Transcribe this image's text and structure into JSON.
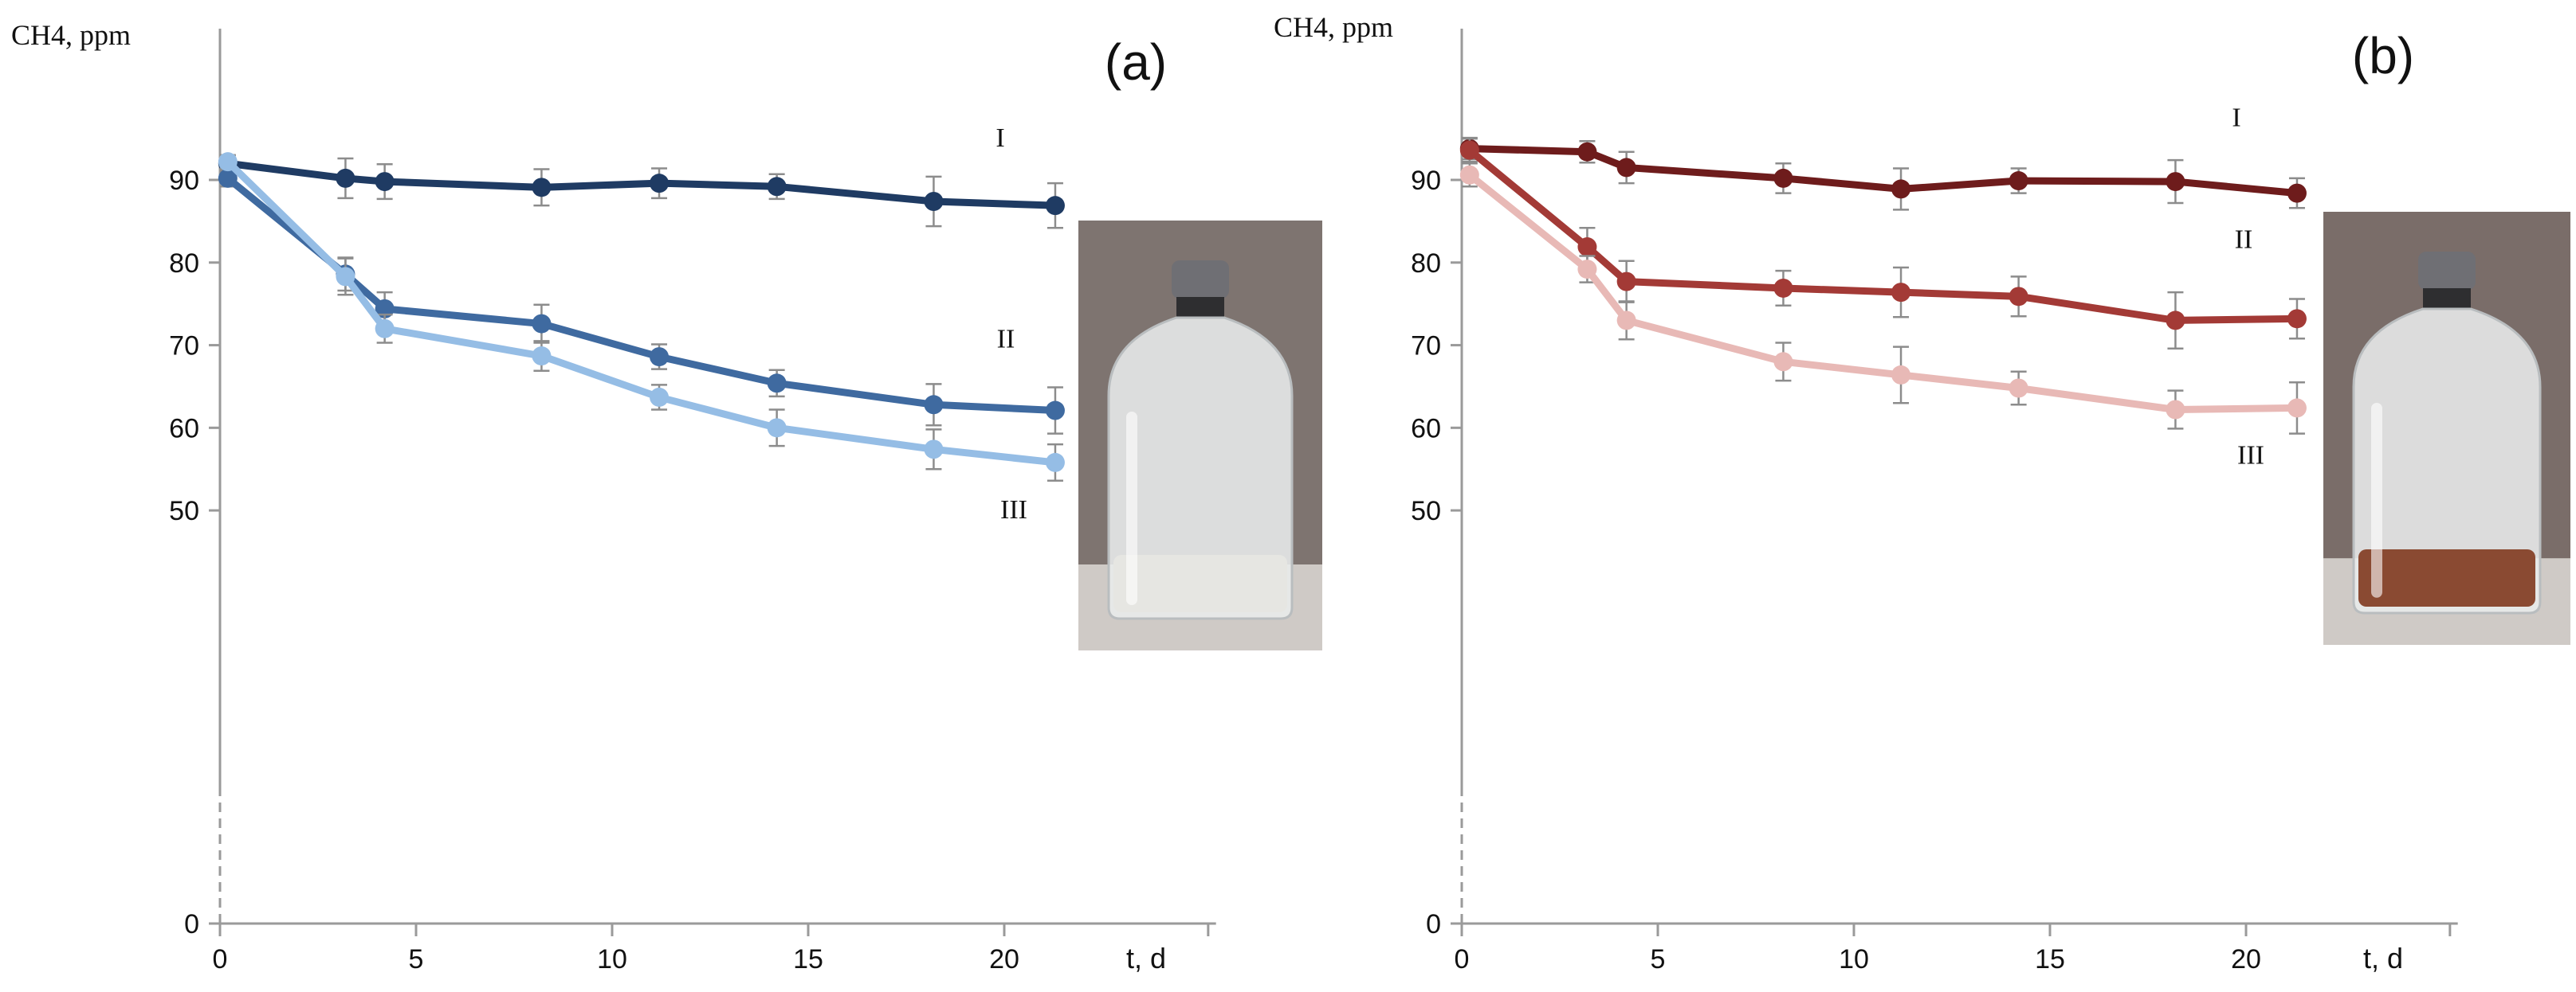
{
  "chart_data": [
    {
      "type": "line",
      "panel_label": "(a)",
      "ylabel": "CH4, ppm",
      "xlabel": "t, d",
      "xlim": [
        0,
        25
      ],
      "ylim": [
        0,
        100
      ],
      "x_ticks": [
        0,
        5,
        10,
        15,
        20
      ],
      "y_ticks": [
        0,
        50,
        60,
        70,
        80,
        90
      ],
      "grid": false,
      "series": [
        {
          "name": "I",
          "color": "#1f3b63",
          "x": [
            0.2,
            3.2,
            4.2,
            8.2,
            11.2,
            14.2,
            18.2,
            21.3
          ],
          "y": [
            92.0,
            90.2,
            89.8,
            89.1,
            89.6,
            89.2,
            87.4,
            86.9
          ],
          "err": [
            1.0,
            2.4,
            2.1,
            2.2,
            1.8,
            1.5,
            3.0,
            2.7
          ]
        },
        {
          "name": "II",
          "color": "#3f6aa0",
          "x": [
            0.2,
            3.2,
            4.2,
            8.2,
            11.2,
            14.2,
            18.2,
            21.3
          ],
          "y": [
            90.2,
            78.6,
            74.4,
            72.6,
            68.6,
            65.4,
            62.8,
            62.1
          ],
          "err": [
            1.0,
            2.0,
            2.0,
            2.3,
            1.5,
            1.6,
            2.5,
            2.8
          ]
        },
        {
          "name": "III",
          "color": "#95bde5",
          "x": [
            0.2,
            3.2,
            4.2,
            8.2,
            11.2,
            14.2,
            18.2,
            21.3
          ],
          "y": [
            92.2,
            78.3,
            72.0,
            68.7,
            63.7,
            60.0,
            57.4,
            55.8
          ],
          "err": [
            0.8,
            2.2,
            1.7,
            1.8,
            1.5,
            2.2,
            2.4,
            2.2
          ]
        }
      ]
    },
    {
      "type": "line",
      "panel_label": "(b)",
      "ylabel": "CH4, ppm",
      "xlabel": "t, d",
      "xlim": [
        0,
        25
      ],
      "ylim": [
        0,
        100
      ],
      "x_ticks": [
        0,
        5,
        10,
        15,
        20
      ],
      "y_ticks": [
        0,
        50,
        60,
        70,
        80,
        90
      ],
      "grid": false,
      "series": [
        {
          "name": "I",
          "color": "#6e1c1c",
          "x": [
            0.2,
            3.2,
            4.2,
            8.2,
            11.2,
            14.2,
            18.2,
            21.3
          ],
          "y": [
            93.8,
            93.4,
            91.5,
            90.2,
            88.9,
            89.9,
            89.8,
            88.4
          ],
          "err": [
            1.3,
            1.3,
            1.9,
            1.8,
            2.5,
            1.5,
            2.6,
            1.8
          ]
        },
        {
          "name": "II",
          "color": "#a33a36",
          "x": [
            0.2,
            3.2,
            4.2,
            8.2,
            11.2,
            14.2,
            18.2,
            21.3
          ],
          "y": [
            93.6,
            81.9,
            77.7,
            76.9,
            76.4,
            75.9,
            73.0,
            73.2
          ],
          "err": [
            1.4,
            2.3,
            2.5,
            2.1,
            3.0,
            2.4,
            3.4,
            2.4
          ]
        },
        {
          "name": "III",
          "color": "#e8b9b6",
          "x": [
            0.2,
            3.2,
            4.2,
            8.2,
            11.2,
            14.2,
            18.2,
            21.3
          ],
          "y": [
            90.6,
            79.2,
            73.0,
            68.0,
            66.4,
            64.8,
            62.2,
            62.4
          ],
          "err": [
            1.4,
            1.6,
            2.3,
            2.3,
            3.4,
            2.0,
            2.3,
            3.1
          ]
        }
      ]
    }
  ],
  "photos": [
    {
      "icon": "glass-vial-white-powder-photo",
      "bg": "#7e7470",
      "contents": "#e6e6e2"
    },
    {
      "icon": "glass-vial-brown-granules-photo",
      "bg": "#7a6d69",
      "contents": "#8a4a32"
    }
  ]
}
